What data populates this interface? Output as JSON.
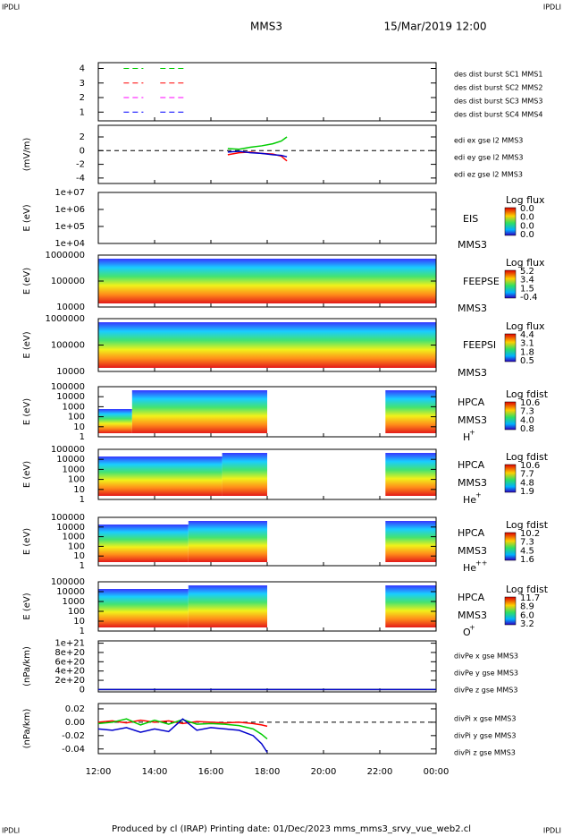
{
  "header": {
    "corner": "IPDLI",
    "title": "MMS3",
    "date": "15/Mar/2019 12:00"
  },
  "footer": "Produced by cl (IRAP)   Printing date: 01/Dec/2023   mms_mms3_srvy_vue_web2.cl",
  "chart_data": [
    {
      "type": "status",
      "ylim": [
        0.4,
        4.4
      ],
      "yticks": [
        4,
        3,
        2,
        1
      ],
      "series": [
        {
          "name": "des dist burst SC1 MMS1",
          "color": "#0000ff",
          "level": 1,
          "intervals": [
            [
              12.9,
              13.6
            ],
            [
              14.2,
              15.1
            ]
          ]
        },
        {
          "name": "des dist burst SC2 MMS2",
          "color": "#ff00ff",
          "level": 2,
          "intervals": [
            [
              12.9,
              13.6
            ],
            [
              14.2,
              15.1
            ]
          ]
        },
        {
          "name": "des dist burst SC3 MMS3",
          "color": "#ff0000",
          "level": 3,
          "intervals": [
            [
              12.9,
              13.6
            ],
            [
              14.2,
              15.1
            ]
          ]
        },
        {
          "name": "des dist burst SC4 MMS4",
          "color": "#00cc00",
          "level": 4,
          "intervals": [
            [
              12.9,
              13.6
            ],
            [
              14.2,
              15.1
            ]
          ]
        }
      ]
    },
    {
      "type": "line",
      "ylabel": "(mV/m)",
      "ylim": [
        -4.8,
        3.7
      ],
      "yticks": [
        2,
        0,
        -2,
        -4
      ],
      "reference": 0,
      "series": [
        {
          "name": "edi ex gse l2 MMS3",
          "color": "#ff0000",
          "x": [
            16.6,
            17,
            17.4,
            17.8,
            18.2,
            18.5,
            18.7
          ],
          "values": [
            -0.6,
            -0.3,
            -0.2,
            -0.4,
            -0.5,
            -0.8,
            -1.5
          ]
        },
        {
          "name": "edi ey gse l2 MMS3",
          "color": "#00cc00",
          "x": [
            16.6,
            17,
            17.4,
            17.8,
            18.2,
            18.5,
            18.7
          ],
          "values": [
            0.3,
            0.2,
            0.5,
            0.7,
            1,
            1.4,
            2
          ]
        },
        {
          "name": "edi ez gse l2 MMS3",
          "color": "#0000cc",
          "x": [
            16.6,
            17,
            17.4,
            17.8,
            18.2,
            18.5,
            18.7
          ],
          "values": [
            -0.2,
            -0.1,
            -0.3,
            -0.4,
            -0.6,
            -0.7,
            -0.9
          ]
        }
      ]
    },
    {
      "type": "spectrogram",
      "ylabel": "E (eV)",
      "log": true,
      "ylim": [
        10000,
        10000000
      ],
      "yticks": [
        {
          "value": 10000000,
          "label": "1e+07"
        },
        {
          "value": 1000000,
          "label": "1e+06"
        },
        {
          "value": 100000,
          "label": "1e+05"
        },
        {
          "value": 10000,
          "label": "1e+04"
        }
      ],
      "side": [
        "EIS",
        "MMS3"
      ],
      "colorbar": {
        "title": "Log flux",
        "labels": [
          "0.0",
          "0.0",
          "0.0",
          "0.0"
        ]
      }
    },
    {
      "type": "spectrogram",
      "ylabel": "E (eV)",
      "log": true,
      "ylim": [
        10000,
        1000000
      ],
      "yticks": [
        1000000,
        100000,
        10000
      ],
      "side": [
        "FEEPSE",
        "MMS3"
      ],
      "colorbar": {
        "title": "Log flux",
        "labels": [
          "5.2",
          "3.4",
          "1.5",
          "-0.4"
        ]
      }
    },
    {
      "type": "spectrogram",
      "ylabel": "E (eV)",
      "log": true,
      "ylim": [
        10000,
        1000000
      ],
      "yticks": [
        1000000,
        100000,
        10000
      ],
      "side": [
        "FEEPSI",
        "MMS3"
      ],
      "colorbar": {
        "title": "Log flux",
        "labels": [
          "4.4",
          "3.1",
          "1.8",
          "0.5"
        ]
      }
    },
    {
      "type": "spectrogram",
      "ylabel": "E (eV)",
      "log": true,
      "ylim": [
        1,
        100000
      ],
      "yticks": [
        100000,
        10000,
        1000,
        100,
        10,
        1
      ],
      "side": [
        "HPCA",
        "MMS3"
      ],
      "species": {
        "base": "H",
        "sup": "+"
      },
      "colorbar": {
        "title": "Log fdist",
        "labels": [
          "10.6",
          "7.3",
          "4.0",
          "0.8"
        ]
      }
    },
    {
      "type": "spectrogram",
      "ylabel": "E (eV)",
      "log": true,
      "ylim": [
        1,
        100000
      ],
      "yticks": [
        100000,
        10000,
        1000,
        100,
        10,
        1
      ],
      "side": [
        "HPCA",
        "MMS3"
      ],
      "species": {
        "base": "He",
        "sup": "+"
      },
      "colorbar": {
        "title": "Log fdist",
        "labels": [
          "10.6",
          "7.7",
          "4.8",
          "1.9"
        ]
      }
    },
    {
      "type": "spectrogram",
      "ylabel": "E (eV)",
      "log": true,
      "ylim": [
        1,
        100000
      ],
      "yticks": [
        100000,
        10000,
        1000,
        100,
        10,
        1
      ],
      "side": [
        "HPCA",
        "MMS3"
      ],
      "species": {
        "base": "He",
        "sup": "++"
      },
      "colorbar": {
        "title": "Log fdist",
        "labels": [
          "10.2",
          "7.3",
          "4.5",
          "1.6"
        ]
      }
    },
    {
      "type": "spectrogram",
      "ylabel": "E (eV)",
      "log": true,
      "ylim": [
        1,
        100000
      ],
      "yticks": [
        100000,
        10000,
        1000,
        100,
        10,
        1
      ],
      "side": [
        "HPCA",
        "MMS3"
      ],
      "species": {
        "base": "O",
        "sup": "+"
      },
      "colorbar": {
        "title": "Log fdist",
        "labels": [
          "11.7",
          "8.9",
          "6.0",
          "3.2"
        ]
      }
    },
    {
      "type": "line",
      "ylabel": "(nPa/km)",
      "ylim": [
        -50000000000000000000,
        1050000000000000000000
      ],
      "yticks": [
        {
          "value": 1e+21,
          "label": "1e+21"
        },
        {
          "value": 8e+20,
          "label": "8e+20"
        },
        {
          "value": 6e+20,
          "label": "6e+20"
        },
        {
          "value": 4e+20,
          "label": "4e+20"
        },
        {
          "value": 2e+20,
          "label": "2e+20"
        },
        0
      ],
      "series": [
        {
          "name": "divPe x gse MMS3",
          "color": "#ff0000",
          "x": [
            12,
            24
          ],
          "values": [
            0,
            0
          ]
        },
        {
          "name": "divPe y gse MMS3",
          "color": "#00cc00",
          "x": [
            12,
            24
          ],
          "values": [
            0,
            0
          ]
        },
        {
          "name": "divPe z gse MMS3",
          "color": "#0000cc",
          "x": [
            12,
            24
          ],
          "values": [
            0,
            0
          ]
        }
      ]
    },
    {
      "type": "line",
      "ylabel": "(nPa/km)",
      "ylim": [
        -0.047,
        0.028
      ],
      "yticks": [
        0.02,
        {
          "value": 0,
          "label": "0.00"
        },
        -0.02,
        -0.04
      ],
      "reference": 0,
      "xlim": [
        12,
        24
      ],
      "xticks": [
        {
          "value": 12,
          "label": "12:00"
        },
        {
          "value": 14,
          "label": "14:00"
        },
        {
          "value": 16,
          "label": "16:00"
        },
        {
          "value": 18,
          "label": "18:00"
        },
        {
          "value": 20,
          "label": "20:00"
        },
        {
          "value": 22,
          "label": "22:00"
        },
        {
          "value": 24,
          "label": "00:00"
        }
      ],
      "series": [
        {
          "name": "divPi x gse MMS3",
          "color": "#ff0000",
          "x": [
            12,
            12.5,
            13,
            13.5,
            14,
            14.5,
            15,
            15.5,
            16,
            16.5,
            17,
            17.5,
            17.8,
            18
          ],
          "values": [
            0,
            0.002,
            -0.001,
            0.003,
            0,
            0.002,
            -0.002,
            0.001,
            0,
            -0.001,
            0,
            -0.002,
            -0.004,
            -0.006
          ]
        },
        {
          "name": "divPi y gse MMS3",
          "color": "#00cc00",
          "x": [
            12,
            12.5,
            13,
            13.5,
            14,
            14.5,
            15,
            15.5,
            16,
            16.5,
            17,
            17.5,
            17.8,
            18
          ],
          "values": [
            -0.002,
            0,
            0.005,
            -0.004,
            0.003,
            -0.003,
            0.004,
            -0.003,
            -0.002,
            -0.003,
            -0.005,
            -0.01,
            -0.018,
            -0.025
          ]
        },
        {
          "name": "divPi z gse MMS3",
          "color": "#0000cc",
          "x": [
            12,
            12.5,
            13,
            13.5,
            14,
            14.5,
            15,
            15.5,
            16,
            16.5,
            17,
            17.5,
            17.8,
            18
          ],
          "values": [
            -0.01,
            -0.012,
            -0.008,
            -0.015,
            -0.01,
            -0.014,
            0.005,
            -0.012,
            -0.008,
            -0.01,
            -0.012,
            -0.02,
            -0.032,
            -0.045
          ]
        }
      ]
    }
  ]
}
